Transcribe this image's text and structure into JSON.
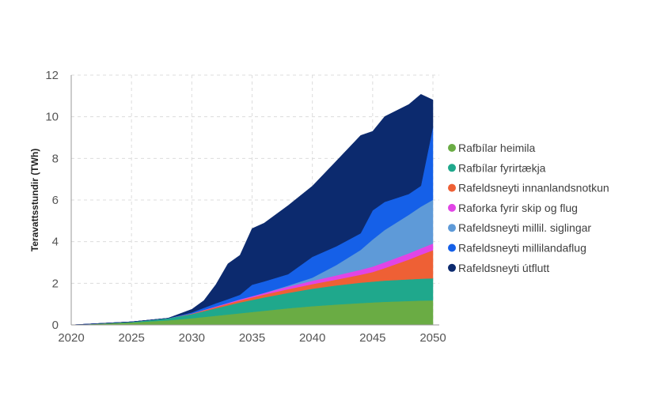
{
  "chart_data": {
    "type": "area",
    "stacked": true,
    "title": "",
    "xlabel": "",
    "ylabel": "Teravattsstundir (TWh)",
    "xlim": [
      2020,
      2050
    ],
    "ylim": [
      0,
      12
    ],
    "x": [
      2020,
      2025,
      2028,
      2030,
      2031,
      2032,
      2033,
      2034,
      2035,
      2036,
      2038,
      2040,
      2042,
      2044,
      2045,
      2046,
      2048,
      2049,
      2050
    ],
    "xticks": [
      "2020",
      "2025",
      "2030",
      "2035",
      "2040",
      "2045",
      "2050"
    ],
    "yticks": [
      "0",
      "2",
      "4",
      "6",
      "8",
      "10",
      "12"
    ],
    "series": [
      {
        "name": "Rafbílar heimila",
        "color": "#6aac44",
        "values": [
          0.0,
          0.12,
          0.22,
          0.32,
          0.38,
          0.44,
          0.5,
          0.56,
          0.62,
          0.68,
          0.8,
          0.9,
          0.98,
          1.05,
          1.08,
          1.11,
          1.15,
          1.17,
          1.18
        ]
      },
      {
        "name": "Rafbílar fyrirtækja",
        "color": "#1fa88c",
        "values": [
          0.0,
          0.03,
          0.1,
          0.2,
          0.28,
          0.36,
          0.44,
          0.52,
          0.58,
          0.64,
          0.74,
          0.84,
          0.92,
          0.98,
          1.0,
          1.02,
          1.04,
          1.05,
          1.06
        ]
      },
      {
        "name": "Rafeldsneyti innanlandsnotkun",
        "color": "#ee6035",
        "values": [
          0.0,
          0.0,
          0.0,
          0.02,
          0.04,
          0.06,
          0.08,
          0.1,
          0.12,
          0.14,
          0.18,
          0.22,
          0.28,
          0.38,
          0.46,
          0.6,
          0.95,
          1.15,
          1.35
        ]
      },
      {
        "name": "Raforka fyrir skip og flug",
        "color": "#e145e6",
        "values": [
          0.0,
          0.0,
          0.0,
          0.01,
          0.02,
          0.03,
          0.04,
          0.05,
          0.06,
          0.08,
          0.12,
          0.16,
          0.2,
          0.24,
          0.26,
          0.28,
          0.3,
          0.31,
          0.32
        ]
      },
      {
        "name": "Rafeldsneyti millil. siglingar",
        "color": "#5e9ad8",
        "values": [
          0.0,
          0.0,
          0.0,
          0.0,
          0.0,
          0.0,
          0.0,
          0.0,
          0.0,
          0.0,
          0.05,
          0.15,
          0.5,
          0.95,
          1.3,
          1.55,
          1.85,
          2.0,
          2.1
        ]
      },
      {
        "name": "Rafeldsneyti millilandaflug",
        "color": "#1560e8",
        "values": [
          0.0,
          0.0,
          0.0,
          0.05,
          0.1,
          0.15,
          0.18,
          0.22,
          0.55,
          0.55,
          0.55,
          1.0,
          0.9,
          0.8,
          1.4,
          1.35,
          1.0,
          1.0,
          3.5
        ]
      },
      {
        "name": "Rafeldsneyti útflutt",
        "color": "#0c2a6e",
        "values": [
          0.0,
          0.0,
          0.0,
          0.15,
          0.35,
          0.9,
          1.7,
          1.9,
          2.7,
          2.8,
          3.3,
          3.4,
          4.1,
          4.7,
          3.8,
          4.1,
          4.3,
          4.4,
          1.3
        ]
      }
    ],
    "legend_position": "right",
    "grid": true
  }
}
